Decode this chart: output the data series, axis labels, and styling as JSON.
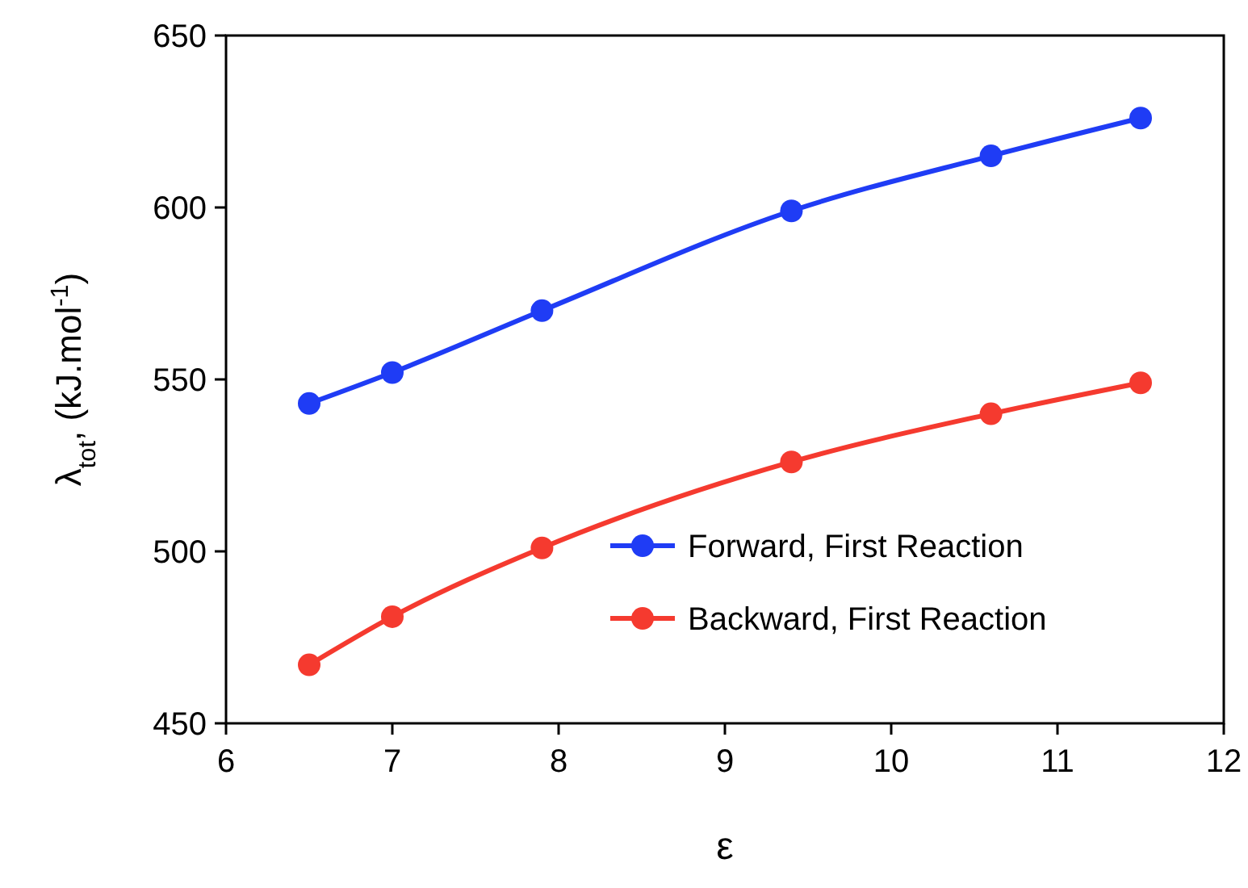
{
  "chart_data": {
    "type": "line",
    "xlabel": "ε",
    "ylabel": "λ$_{tot}$, (kJ.mol$^{-1}$)",
    "xlim": [
      6,
      12
    ],
    "xticks": [
      6,
      7,
      8,
      9,
      10,
      11,
      12
    ],
    "ylim": [
      450,
      650
    ],
    "yticks": [
      450,
      500,
      550,
      600,
      650
    ],
    "x": [
      6.5,
      7,
      7.9,
      9.4,
      10.6,
      11.5
    ],
    "series": [
      {
        "name": "Forward, First Reaction",
        "color": "#1f3cf5",
        "values": [
          543,
          552,
          570,
          599,
          615,
          626
        ]
      },
      {
        "name": "Backward, First Reaction",
        "color": "#f53a2f",
        "values": [
          467,
          481,
          501,
          526,
          540,
          549
        ]
      }
    ],
    "marker": "circle",
    "line_style": "solid",
    "grid": false,
    "legend": "bottom right"
  }
}
